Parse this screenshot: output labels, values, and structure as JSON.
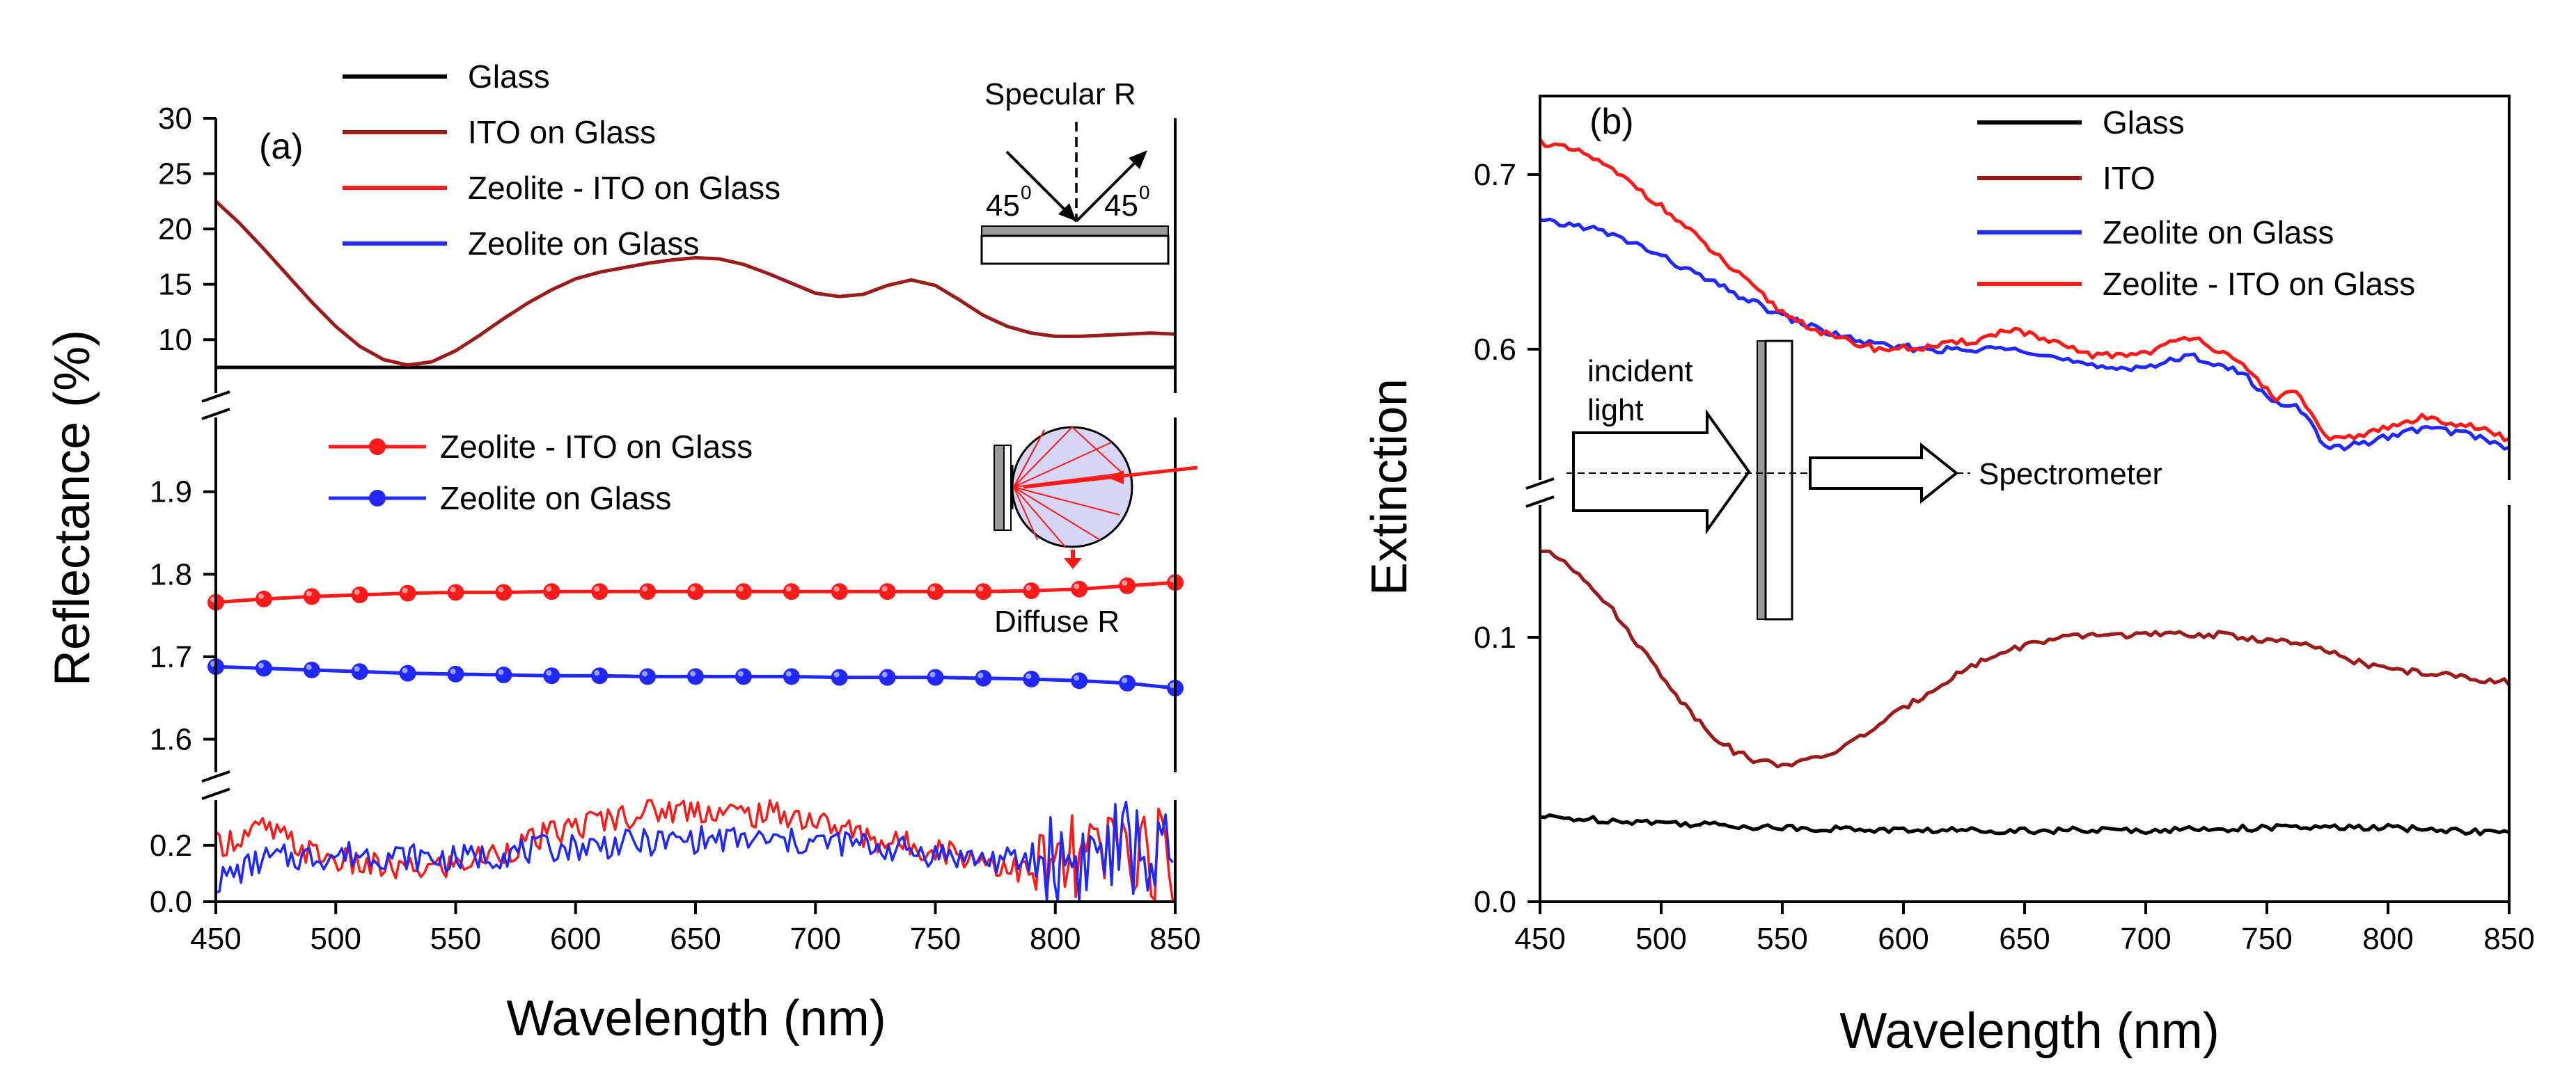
{
  "colors": {
    "glass": "#000000",
    "ito": "#9b1b1b",
    "zeolite_ito": "#ff1a1a",
    "zeolite": "#1f28ff",
    "sphere_fill": "#d6d6f4",
    "substrate_fill": "#9a9a9a"
  },
  "chart_data": [
    {
      "type": "line",
      "panel_label": "(a)",
      "xlabel": "Wavelength (nm)",
      "ylabel": "Reflectance (%)",
      "xlim": [
        450,
        850
      ],
      "x_ticks": [
        450,
        500,
        550,
        600,
        650,
        700,
        750,
        800,
        850
      ],
      "segments": {
        "top": {
          "ylim": [
            7.5,
            30
          ],
          "y_ticks": [
            10,
            15,
            20,
            25,
            30
          ],
          "series": [
            {
              "name": "Glass",
              "key": "glass",
              "x": [
                450,
                850
              ],
              "y": [
                7.5,
                7.5
              ]
            },
            {
              "name": "ITO on Glass",
              "key": "ito",
              "x": [
                450,
                460,
                470,
                480,
                490,
                500,
                510,
                520,
                530,
                540,
                550,
                560,
                570,
                580,
                590,
                600,
                610,
                620,
                630,
                640,
                650,
                660,
                670,
                680,
                690,
                700,
                710,
                720,
                730,
                740,
                750,
                760,
                770,
                780,
                790,
                800,
                810,
                820,
                830,
                840,
                850
              ],
              "y": [
                22.5,
                20.5,
                18.2,
                15.8,
                13.4,
                11.2,
                9.4,
                8.2,
                7.7,
                8.0,
                9.0,
                10.4,
                11.9,
                13.3,
                14.5,
                15.5,
                16.1,
                16.5,
                16.9,
                17.2,
                17.4,
                17.3,
                16.8,
                16.0,
                15.1,
                14.2,
                13.9,
                14.1,
                14.9,
                15.4,
                14.9,
                13.6,
                12.2,
                11.2,
                10.6,
                10.3,
                10.3,
                10.4,
                10.5,
                10.6,
                10.5
              ]
            }
          ]
        },
        "middle": {
          "ylim": [
            1.56,
            1.99
          ],
          "y_ticks": [
            1.6,
            1.7,
            1.8,
            1.9
          ],
          "series": [
            {
              "name": "Zeolite - ITO on Glass",
              "key": "zeolite_ito",
              "x": [
                450,
                470,
                490,
                510,
                530,
                550,
                570,
                590,
                610,
                630,
                650,
                670,
                690,
                710,
                730,
                750,
                770,
                790,
                810,
                830,
                850
              ],
              "y": [
                1.766,
                1.77,
                1.773,
                1.775,
                1.777,
                1.778,
                1.778,
                1.779,
                1.779,
                1.779,
                1.779,
                1.779,
                1.779,
                1.779,
                1.779,
                1.779,
                1.779,
                1.78,
                1.782,
                1.786,
                1.79
              ]
            },
            {
              "name": "Zeolite on Glass",
              "key": "zeolite",
              "x": [
                450,
                470,
                490,
                510,
                530,
                550,
                570,
                590,
                610,
                630,
                650,
                670,
                690,
                710,
                730,
                750,
                770,
                790,
                810,
                830,
                850
              ],
              "y": [
                1.688,
                1.686,
                1.684,
                1.682,
                1.68,
                1.679,
                1.678,
                1.677,
                1.677,
                1.676,
                1.676,
                1.676,
                1.676,
                1.675,
                1.675,
                1.675,
                1.674,
                1.673,
                1.671,
                1.668,
                1.662
              ]
            }
          ]
        },
        "bottom": {
          "ylim": [
            0.0,
            0.36
          ],
          "y_ticks": [
            0.0,
            0.2
          ],
          "tick_labels": [
            "0.0",
            "0.2"
          ],
          "series": [
            {
              "name": "Zeolite - ITO on Glass",
              "key": "zeolite_ito",
              "x": [
                450,
                470,
                490,
                510,
                530,
                550,
                570,
                590,
                610,
                630,
                650,
                670,
                690,
                710,
                730,
                750,
                770,
                790,
                810,
                830,
                850
              ],
              "y": [
                0.2,
                0.26,
                0.17,
                0.13,
                0.11,
                0.13,
                0.18,
                0.24,
                0.29,
                0.32,
                0.33,
                0.31,
                0.31,
                0.26,
                0.21,
                0.19,
                0.15,
                0.1,
                0.14,
                0.2,
                0.14
              ]
            },
            {
              "name": "Zeolite on Glass",
              "key": "zeolite",
              "x": [
                450,
                470,
                490,
                510,
                530,
                550,
                570,
                590,
                610,
                630,
                650,
                670,
                690,
                710,
                730,
                750,
                770,
                790,
                810,
                830,
                850
              ],
              "y": [
                0.07,
                0.15,
                0.16,
                0.17,
                0.16,
                0.15,
                0.17,
                0.19,
                0.2,
                0.21,
                0.22,
                0.22,
                0.21,
                0.21,
                0.19,
                0.17,
                0.15,
                0.14,
                0.15,
                0.2,
                0.12
              ]
            }
          ]
        }
      },
      "legend_top": [
        "Glass",
        "ITO on Glass",
        "Zeolite - ITO on Glass",
        "Zeolite on Glass"
      ],
      "legend_middle": [
        "Zeolite - ITO on Glass",
        "Zeolite on Glass"
      ],
      "annotations": {
        "specular": "Specular R",
        "angle_left": "45",
        "angle_right": "45",
        "angle_sup": "0",
        "diffuse": "Diffuse R"
      }
    },
    {
      "type": "line",
      "panel_label": "(b)",
      "xlabel": "Wavelength (nm)",
      "ylabel": "Extinction",
      "xlim": [
        450,
        850
      ],
      "x_ticks": [
        450,
        500,
        550,
        600,
        650,
        700,
        750,
        800,
        850
      ],
      "segments": {
        "top": {
          "ylim": [
            0.525,
            0.745
          ],
          "y_ticks": [
            0.6,
            0.7
          ],
          "series": [
            {
              "name": "Zeolite on Glass",
              "key": "zeolite",
              "x": [
                450,
                470,
                490,
                510,
                530,
                550,
                570,
                590,
                610,
                630,
                645,
                660,
                680,
                700,
                720,
                740,
                755,
                762,
                775,
                795,
                815,
                835,
                850
              ],
              "y": [
                0.673,
                0.67,
                0.66,
                0.646,
                0.632,
                0.619,
                0.609,
                0.602,
                0.6,
                0.599,
                0.602,
                0.596,
                0.589,
                0.59,
                0.596,
                0.586,
                0.567,
                0.57,
                0.542,
                0.548,
                0.555,
                0.551,
                0.543
              ]
            },
            {
              "name": "Zeolite - ITO on Glass",
              "key": "zeolite_ito",
              "x": [
                450,
                470,
                490,
                510,
                530,
                550,
                570,
                590,
                610,
                630,
                645,
                660,
                680,
                700,
                720,
                740,
                755,
                762,
                775,
                795,
                815,
                835,
                850
              ],
              "y": [
                0.719,
                0.711,
                0.693,
                0.67,
                0.645,
                0.621,
                0.607,
                0.6,
                0.601,
                0.605,
                0.612,
                0.604,
                0.596,
                0.598,
                0.608,
                0.59,
                0.571,
                0.577,
                0.547,
                0.553,
                0.561,
                0.556,
                0.548
              ]
            }
          ]
        },
        "bottom": {
          "ylim": [
            0.0,
            0.15
          ],
          "y_ticks": [
            0.0,
            0.1
          ],
          "tick_labels": [
            "0.0",
            "0.1"
          ],
          "series": [
            {
              "name": "ITO",
              "key": "ito",
              "x": [
                450,
                460,
                470,
                480,
                490,
                500,
                510,
                520,
                530,
                540,
                550,
                560,
                570,
                580,
                590,
                600,
                610,
                620,
                630,
                640,
                650,
                660,
                670,
                680,
                690,
                700,
                710,
                720,
                730,
                740,
                750,
                760,
                770,
                780,
                790,
                800,
                810,
                820,
                830,
                840,
                850
              ],
              "y": [
                0.133,
                0.129,
                0.121,
                0.11,
                0.098,
                0.086,
                0.074,
                0.064,
                0.057,
                0.053,
                0.052,
                0.053,
                0.056,
                0.061,
                0.067,
                0.073,
                0.079,
                0.085,
                0.09,
                0.094,
                0.097,
                0.099,
                0.1,
                0.101,
                0.101,
                0.101,
                0.101,
                0.101,
                0.101,
                0.1,
                0.099,
                0.098,
                0.096,
                0.093,
                0.09,
                0.088,
                0.087,
                0.086,
                0.085,
                0.084,
                0.083
              ]
            },
            {
              "name": "Glass",
              "key": "glass",
              "x": [
                450,
                500,
                550,
                600,
                650,
                700,
                750,
                800,
                850
              ],
              "y": [
                0.032,
                0.03,
                0.028,
                0.027,
                0.027,
                0.027,
                0.028,
                0.028,
                0.026
              ]
            }
          ]
        }
      },
      "legend": [
        "Glass",
        "ITO",
        "Zeolite on Glass",
        "Zeolite - ITO on Glass"
      ],
      "annotations": {
        "incident_line1": "incident",
        "incident_line2": "light",
        "spectrometer": "Spectrometer"
      }
    }
  ]
}
